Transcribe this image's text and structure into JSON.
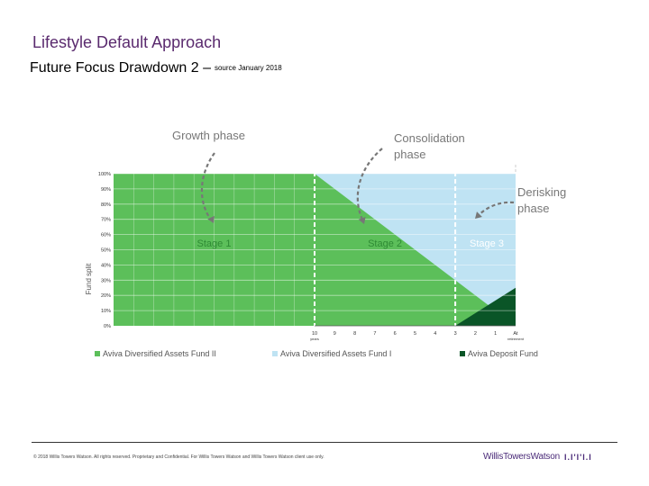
{
  "header": {
    "title": "Lifestyle Default Approach",
    "subtitle": "Future Focus Drawdown 2 –",
    "source_note": "source January 2018"
  },
  "footer": {
    "copyright": "© 2018 Willis Towers Watson. All rights reserved. Proprietary and Confidential. For Willis Towers Watson and Willis Towers Watson client use only.",
    "brand": "WillisTowersWatson",
    "brand_mark": "I.I'I'I.I"
  },
  "colors": {
    "growth": "#5cbf5a",
    "consolidation": "#bfe3f3",
    "deposit": "#0a5527",
    "annotation": "#777777"
  },
  "chart_data": {
    "type": "area",
    "title": "",
    "ylabel": "Fund split",
    "y_ticks": [
      "100%",
      "90%",
      "80%",
      "70%",
      "60%",
      "50%",
      "40%",
      "30%",
      "20%",
      "10%",
      "0%"
    ],
    "ylim": [
      0,
      100
    ],
    "x_ticks": [
      {
        "label": "10",
        "sub": "years",
        "years": 10
      },
      {
        "label": "9",
        "sub": "",
        "years": 9
      },
      {
        "label": "8",
        "sub": "",
        "years": 8
      },
      {
        "label": "7",
        "sub": "",
        "years": 7
      },
      {
        "label": "6",
        "sub": "",
        "years": 6
      },
      {
        "label": "5",
        "sub": "",
        "years": 5
      },
      {
        "label": "4",
        "sub": "",
        "years": 4
      },
      {
        "label": "3",
        "sub": "",
        "years": 3
      },
      {
        "label": "2",
        "sub": "",
        "years": 2
      },
      {
        "label": "1",
        "sub": "",
        "years": 1
      },
      {
        "label": "At",
        "sub": "retirement",
        "years": 0
      }
    ],
    "x_range": {
      "start_years_before_retirement": 20,
      "end_years_before_retirement": 0
    },
    "series": [
      {
        "name": "Aviva Diversified Assets Fund II",
        "points": [
          [
            20,
            100
          ],
          [
            10,
            100
          ],
          [
            0,
            0
          ]
        ]
      },
      {
        "name": "Aviva Diversified Assets Fund I",
        "points": [
          [
            20,
            0
          ],
          [
            10,
            0
          ],
          [
            3,
            70
          ],
          [
            0,
            75
          ]
        ]
      },
      {
        "name": "Aviva Deposit Fund",
        "points": [
          [
            20,
            0
          ],
          [
            3,
            0
          ],
          [
            0,
            25
          ]
        ]
      }
    ],
    "stage_boundaries_years": [
      10,
      3
    ],
    "stages": [
      {
        "label": "Stage 1",
        "center_years": 15
      },
      {
        "label": "Stage 2",
        "center_years": 6.5
      },
      {
        "label": "Stage 3",
        "center_years": 1.5
      }
    ],
    "phases": [
      {
        "label_line1": "Growth phase",
        "label_line2": ""
      },
      {
        "label_line1": "Consolidation",
        "label_line2": "phase"
      },
      {
        "label_line1": "Derisking",
        "label_line2": "phase"
      }
    ],
    "legend": [
      {
        "name": "Aviva Diversified Assets Fund II",
        "color": "#5cbf5a"
      },
      {
        "name": "Aviva Diversified Assets Fund I",
        "color": "#bfe3f3"
      },
      {
        "name": "Aviva Deposit Fund",
        "color": "#0a5527"
      }
    ]
  }
}
